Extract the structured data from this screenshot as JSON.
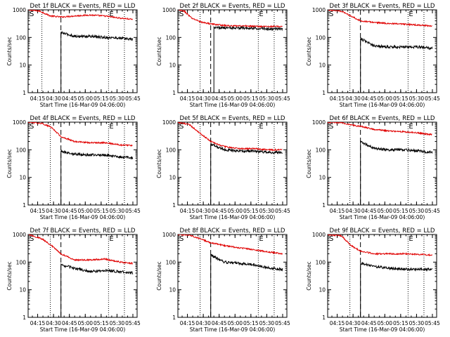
{
  "figure": {
    "ylabel": "Counts/sec",
    "xlabel": "Start Time (16-Mar-09 04:06:00)",
    "x_ticks": [
      "04:15",
      "04:30",
      "04:45",
      "05:00",
      "05:15",
      "05:30",
      "05:45"
    ],
    "y_ticks": [
      "1",
      "10",
      "100",
      "1000"
    ],
    "colors": {
      "events": "#000000",
      "lld": "#e00000",
      "axes": "#000000"
    }
  },
  "chart_data": [
    {
      "type": "line",
      "title": "Det 1f BLACK = Events, RED = LLD",
      "xlim": [
        "04:06",
        "05:49"
      ],
      "ylim": [
        1,
        1000
      ],
      "yscale": "log",
      "start_marker": "S",
      "end_marker": "E",
      "dotted_lines": [
        "04:19",
        "05:22",
        "05:37"
      ],
      "dashed_line": "04:37",
      "x": [
        "04:06",
        "04:17",
        "04:27",
        "04:37",
        "04:50",
        "05:04",
        "05:18",
        "05:33",
        "05:45"
      ],
      "series": [
        {
          "values": [
            1000,
            900,
            600,
            550,
            600,
            650,
            600,
            500,
            450
          ]
        },
        {
          "values": [
            null,
            null,
            null,
            150,
            110,
            110,
            100,
            95,
            85
          ]
        }
      ]
    },
    {
      "type": "line",
      "title": "Det 2f BLACK = Events, RED = LLD",
      "xlim": [
        "04:06",
        "05:49"
      ],
      "ylim": [
        1,
        1000
      ],
      "yscale": "log",
      "start_marker": "S",
      "end_marker": "E",
      "dotted_lines": [
        "04:27",
        "05:22",
        "05:37"
      ],
      "dashed_line": "04:37",
      "x": [
        "04:06",
        "04:12",
        "04:19",
        "04:29",
        "04:40",
        "04:55",
        "05:10",
        "05:25",
        "05:45"
      ],
      "series": [
        {
          "values": [
            1000,
            900,
            500,
            350,
            300,
            260,
            260,
            250,
            250
          ]
        },
        {
          "values": [
            null,
            null,
            null,
            null,
            230,
            220,
            220,
            210,
            200
          ]
        }
      ]
    },
    {
      "type": "line",
      "title": "Det 3f BLACK = Events, RED = LLD",
      "xlim": [
        "04:06",
        "05:49"
      ],
      "ylim": [
        1,
        1000
      ],
      "yscale": "log",
      "start_marker": "S",
      "end_marker": "E",
      "dotted_lines": [
        "04:27",
        "05:22",
        "05:37"
      ],
      "dashed_line": "04:37",
      "x": [
        "04:06",
        "04:19",
        "04:28",
        "04:37",
        "04:50",
        "05:04",
        "05:18",
        "05:33",
        "05:45"
      ],
      "series": [
        {
          "values": [
            1000,
            900,
            600,
            400,
            350,
            320,
            300,
            280,
            260
          ]
        },
        {
          "values": [
            null,
            null,
            null,
            90,
            50,
            45,
            45,
            45,
            40
          ]
        }
      ]
    },
    {
      "type": "line",
      "title": "Det 4f BLACK = Events, RED = LLD",
      "xlim": [
        "04:06",
        "05:49"
      ],
      "ylim": [
        1,
        1000
      ],
      "yscale": "log",
      "start_marker": "S",
      "end_marker": "E",
      "dotted_lines": [
        "04:27",
        "05:22",
        "05:37"
      ],
      "dashed_line": "04:37",
      "x": [
        "04:06",
        "04:19",
        "04:28",
        "04:37",
        "04:50",
        "05:04",
        "05:18",
        "05:33",
        "05:45"
      ],
      "series": [
        {
          "values": [
            1000,
            900,
            650,
            300,
            200,
            180,
            180,
            150,
            140
          ]
        },
        {
          "values": [
            null,
            null,
            null,
            90,
            70,
            65,
            65,
            55,
            50
          ]
        }
      ]
    },
    {
      "type": "line",
      "title": "Det 5f BLACK = Events, RED = LLD",
      "xlim": [
        "04:06",
        "05:49"
      ],
      "ylim": [
        1,
        1000
      ],
      "yscale": "log",
      "start_marker": "S",
      "end_marker": "E",
      "dotted_lines": [
        "04:27",
        "05:22",
        "05:37"
      ],
      "dashed_line": "04:37",
      "x": [
        "04:06",
        "04:17",
        "04:27",
        "04:37",
        "04:50",
        "05:04",
        "05:18",
        "05:33",
        "05:45"
      ],
      "series": [
        {
          "values": [
            1000,
            800,
            400,
            200,
            130,
            110,
            110,
            100,
            100
          ]
        },
        {
          "values": [
            null,
            null,
            null,
            160,
            100,
            90,
            90,
            80,
            80
          ]
        }
      ]
    },
    {
      "type": "line",
      "title": "Det 6f BLACK = Events, RED = LLD",
      "xlim": [
        "04:06",
        "05:49"
      ],
      "ylim": [
        1,
        1000
      ],
      "yscale": "log",
      "start_marker": "S",
      "end_marker": "E",
      "dotted_lines": [
        "04:27",
        "05:22",
        "05:37"
      ],
      "dashed_line": "04:37",
      "x": [
        "04:06",
        "04:19",
        "04:28",
        "04:37",
        "04:50",
        "05:04",
        "05:18",
        "05:33",
        "05:45"
      ],
      "series": [
        {
          "values": [
            1000,
            950,
            800,
            700,
            550,
            480,
            450,
            400,
            350
          ]
        },
        {
          "values": [
            null,
            null,
            null,
            200,
            110,
            100,
            100,
            90,
            80
          ]
        }
      ]
    },
    {
      "type": "line",
      "title": "Det 7f BLACK = Events, RED = LLD",
      "xlim": [
        "04:06",
        "05:49"
      ],
      "ylim": [
        1,
        1000
      ],
      "yscale": "log",
      "start_marker": "S",
      "end_marker": "E",
      "dotted_lines": [
        "04:27",
        "05:22",
        "05:37"
      ],
      "dashed_line": "04:37",
      "x": [
        "04:06",
        "04:19",
        "04:28",
        "04:37",
        "04:50",
        "05:04",
        "05:18",
        "05:33",
        "05:45"
      ],
      "series": [
        {
          "values": [
            1000,
            700,
            400,
            200,
            120,
            120,
            130,
            100,
            90
          ]
        },
        {
          "values": [
            null,
            null,
            null,
            80,
            60,
            45,
            50,
            45,
            40
          ]
        }
      ]
    },
    {
      "type": "line",
      "title": "Det 8f BLACK = Events, RED = LLD",
      "xlim": [
        "04:06",
        "05:49"
      ],
      "ylim": [
        1,
        1000
      ],
      "yscale": "log",
      "start_marker": "S",
      "end_marker": "E",
      "dotted_lines": [
        "04:27",
        "05:22",
        "05:37"
      ],
      "dashed_line": "04:37",
      "x": [
        "04:06",
        "04:17",
        "04:27",
        "04:37",
        "04:50",
        "05:04",
        "05:18",
        "05:33",
        "05:45"
      ],
      "series": [
        {
          "values": [
            1000,
            950,
            700,
            500,
            400,
            330,
            280,
            230,
            200
          ]
        },
        {
          "values": [
            null,
            null,
            null,
            180,
            100,
            90,
            80,
            60,
            55
          ]
        }
      ]
    },
    {
      "type": "line",
      "title": "Det 9f BLACK = Events, RED = LLD",
      "xlim": [
        "04:06",
        "05:49"
      ],
      "ylim": [
        1,
        1000
      ],
      "yscale": "log",
      "start_marker": "S",
      "end_marker": "E",
      "dotted_lines": [
        "04:27",
        "05:22",
        "05:37"
      ],
      "dashed_line": "04:37",
      "x": [
        "04:06",
        "04:19",
        "04:28",
        "04:37",
        "04:50",
        "05:04",
        "05:18",
        "05:33",
        "05:45"
      ],
      "series": [
        {
          "values": [
            1000,
            900,
            400,
            250,
            200,
            200,
            200,
            190,
            180
          ]
        },
        {
          "values": [
            null,
            null,
            null,
            90,
            70,
            60,
            55,
            55,
            55
          ]
        }
      ]
    }
  ]
}
